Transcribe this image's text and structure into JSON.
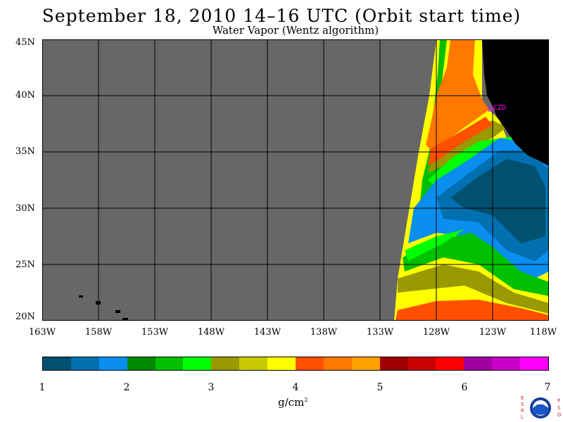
{
  "title": "September 18, 2010  14–16 UTC  (Orbit start time)",
  "subtitle": "Water Vapor (Wentz algorithm)",
  "lat_labels": [
    "45N",
    "40N",
    "35N",
    "30N",
    "25N",
    "20N"
  ],
  "lon_labels": [
    "163W",
    "158W",
    "153W",
    "148W",
    "143W",
    "138W",
    "133W",
    "128W",
    "123W",
    "118W"
  ],
  "station_label": "CZD",
  "colorbar": {
    "ticks": [
      "1",
      "2",
      "3",
      "4",
      "5",
      "6",
      "7"
    ],
    "unit": "g/cm",
    "unit_sup": "2",
    "colors": [
      "#005070",
      "#0070b0",
      "#0a8ef0",
      "#008800",
      "#00c000",
      "#00ff00",
      "#999900",
      "#c8c800",
      "#ffff00",
      "#ff5000",
      "#ff7800",
      "#ffa000",
      "#a00000",
      "#c80000",
      "#ff0000",
      "#a000a0",
      "#c800c8",
      "#ff00ff"
    ]
  },
  "logo": {
    "left_letters": "ESRL",
    "right_letters": "PSD",
    "center_text": "NOAA"
  },
  "map_colors": {
    "no_data": "#676767",
    "land": "#000000",
    "grid": "#000000",
    "station": "#ff00ff"
  }
}
